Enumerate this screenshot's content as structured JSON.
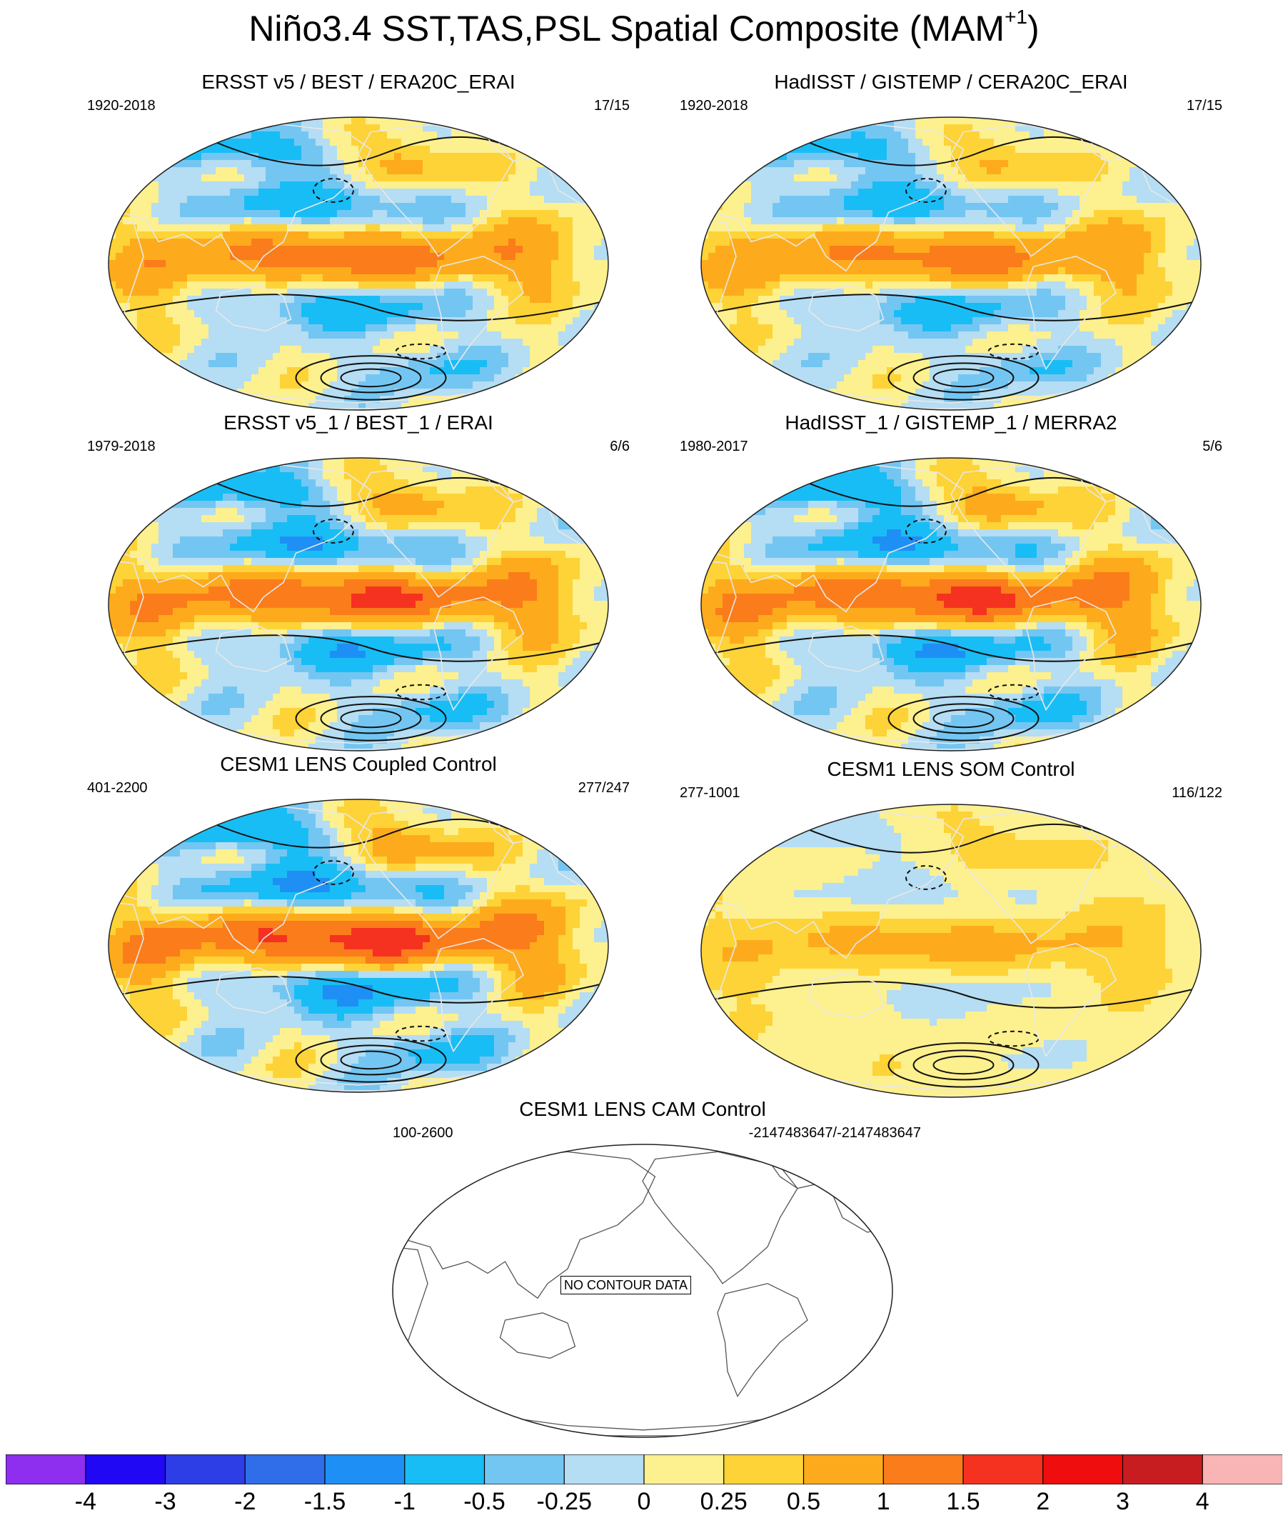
{
  "title": {
    "text": "Niño3.4 SST,TAS,PSL Spatial Composite (MAM",
    "superscript": "+1",
    "close": ")"
  },
  "panels": [
    {
      "title": "ERSST v5 / BEST / ERA20C_ERAI",
      "years": "1920-2018",
      "count": "17/15",
      "pattern": "full",
      "intensity": 0.85
    },
    {
      "title": "HadISST / GISTEMP / CERA20C_ERAI",
      "years": "1920-2018",
      "count": "17/15",
      "pattern": "full",
      "intensity": 0.8
    },
    {
      "title": "ERSST v5_1 / BEST_1 / ERAI",
      "years": "1979-2018",
      "count": "6/6",
      "pattern": "full",
      "intensity": 1.0
    },
    {
      "title": "HadISST_1 / GISTEMP_1 / MERRA2",
      "years": "1980-2017",
      "count": "5/6",
      "pattern": "full",
      "intensity": 1.05
    },
    {
      "title": "CESM1 LENS Coupled Control",
      "years": "401-2200",
      "count": "277/247",
      "pattern": "full",
      "intensity": 1.1
    },
    {
      "title": "CESM1 LENS SOM Control",
      "years": "277-1001",
      "count": "116/122",
      "pattern": "weak",
      "intensity": 0.55
    },
    {
      "title": "CESM1 LENS CAM Control",
      "years": "100-2600",
      "count": "-2147483647/-2147483647",
      "pattern": "empty",
      "intensity": 0,
      "message": "NO CONTOUR DATA"
    }
  ],
  "colorbar": {
    "colors": [
      "#8e2ff0",
      "#2108f5",
      "#2e3ee6",
      "#2f6ee8",
      "#1e90f5",
      "#19bdf5",
      "#74c6f2",
      "#b5ddf3",
      "#fdf08e",
      "#fdd337",
      "#fdab1c",
      "#fb7c1a",
      "#f53220",
      "#ef0d0d",
      "#c81d20",
      "#f9b4b5"
    ],
    "ticks": [
      "-4",
      "-3",
      "-2",
      "-1.5",
      "-1",
      "-0.5",
      "-0.25",
      "0",
      "0.25",
      "0.5",
      "1",
      "1.5",
      "2",
      "3",
      "4"
    ]
  },
  "chart_data": {
    "type": "heatmap",
    "title": "Niño3.4 SST,TAS,PSL Spatial Composite (MAM+1)",
    "levels": [
      -4,
      -3,
      -2,
      -1.5,
      -1,
      -0.5,
      -0.25,
      0,
      0.25,
      0.5,
      1,
      1.5,
      2,
      3,
      4
    ],
    "panels": [
      {
        "name": "ERSST v5 / BEST / ERA20C_ERAI",
        "period": "1920-2018",
        "events": "17/15"
      },
      {
        "name": "HadISST / GISTEMP / CERA20C_ERAI",
        "period": "1920-2018",
        "events": "17/15"
      },
      {
        "name": "ERSST v5_1 / BEST_1 / ERAI",
        "period": "1979-2018",
        "events": "6/6"
      },
      {
        "name": "HadISST_1 / GISTEMP_1 / MERRA2",
        "period": "1980-2017",
        "events": "5/6"
      },
      {
        "name": "CESM1 LENS Coupled Control",
        "period": "401-2200",
        "events": "277/247"
      },
      {
        "name": "CESM1 LENS SOM Control",
        "period": "277-1001",
        "events": "116/122"
      },
      {
        "name": "CESM1 LENS CAM Control",
        "period": "100-2600",
        "events": "-2147483647/-2147483647",
        "note": "NO CONTOUR DATA"
      }
    ]
  }
}
